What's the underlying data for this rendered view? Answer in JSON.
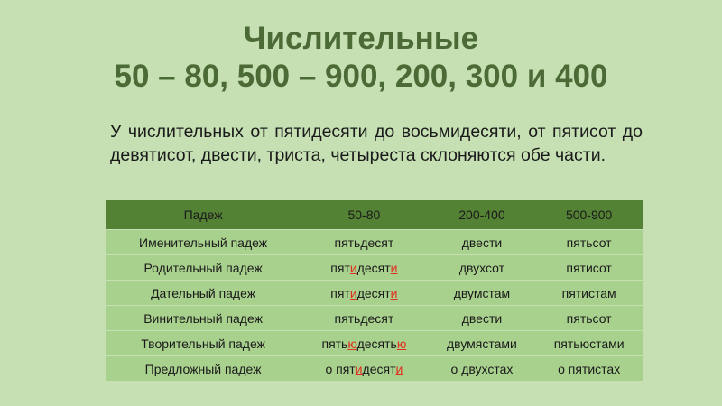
{
  "title": {
    "line1": "Числительные",
    "line2": "50 – 80, 500 – 900, 200, 300 и 400"
  },
  "paragraph": "У числительных от пятидесяти до восьмидесяти, от пятисот до девятисот, двести, триста, четыреста склоняются обе части.",
  "colors": {
    "title": "#4b6a35",
    "header": "#548235",
    "row": "#a9d18e",
    "background": "#c6e0b4",
    "highlight": "#e03020"
  },
  "table": {
    "headers": [
      "Падеж",
      "50-80",
      "200-400",
      "500-900"
    ],
    "rows": [
      [
        [
          [
            "Именительный падеж",
            0
          ]
        ],
        [
          [
            "пятьдесят",
            0
          ]
        ],
        [
          [
            "двести",
            0
          ]
        ],
        [
          [
            "пятьсот",
            0
          ]
        ]
      ],
      [
        [
          [
            "Родительный падеж",
            0
          ]
        ],
        [
          [
            "пят",
            0
          ],
          [
            "и",
            1
          ],
          [
            "десят",
            0
          ],
          [
            "и",
            1
          ]
        ],
        [
          [
            "двухсот",
            0
          ]
        ],
        [
          [
            "пятисот",
            0
          ]
        ]
      ],
      [
        [
          [
            "Дательный падеж",
            0
          ]
        ],
        [
          [
            "пят",
            0
          ],
          [
            "и",
            1
          ],
          [
            "десят",
            0
          ],
          [
            "и",
            1
          ]
        ],
        [
          [
            "двумстам",
            0
          ]
        ],
        [
          [
            "пятистам",
            0
          ]
        ]
      ],
      [
        [
          [
            "Винительный падеж",
            0
          ]
        ],
        [
          [
            "пятьдесят",
            0
          ]
        ],
        [
          [
            "двести",
            0
          ]
        ],
        [
          [
            "пятьсот",
            0
          ]
        ]
      ],
      [
        [
          [
            "Творительный падеж",
            0
          ]
        ],
        [
          [
            "пять",
            0
          ],
          [
            "ю",
            1
          ],
          [
            "десять",
            0
          ],
          [
            "ю",
            1
          ]
        ],
        [
          [
            "двумястами",
            0
          ]
        ],
        [
          [
            "пятьюстами",
            0
          ]
        ]
      ],
      [
        [
          [
            "Предложный падеж",
            0
          ]
        ],
        [
          [
            "о пят",
            0
          ],
          [
            "и",
            1
          ],
          [
            "десят",
            0
          ],
          [
            "и",
            1
          ]
        ],
        [
          [
            "о двухстах",
            0
          ]
        ],
        [
          [
            "о пятистах",
            0
          ]
        ]
      ]
    ]
  }
}
